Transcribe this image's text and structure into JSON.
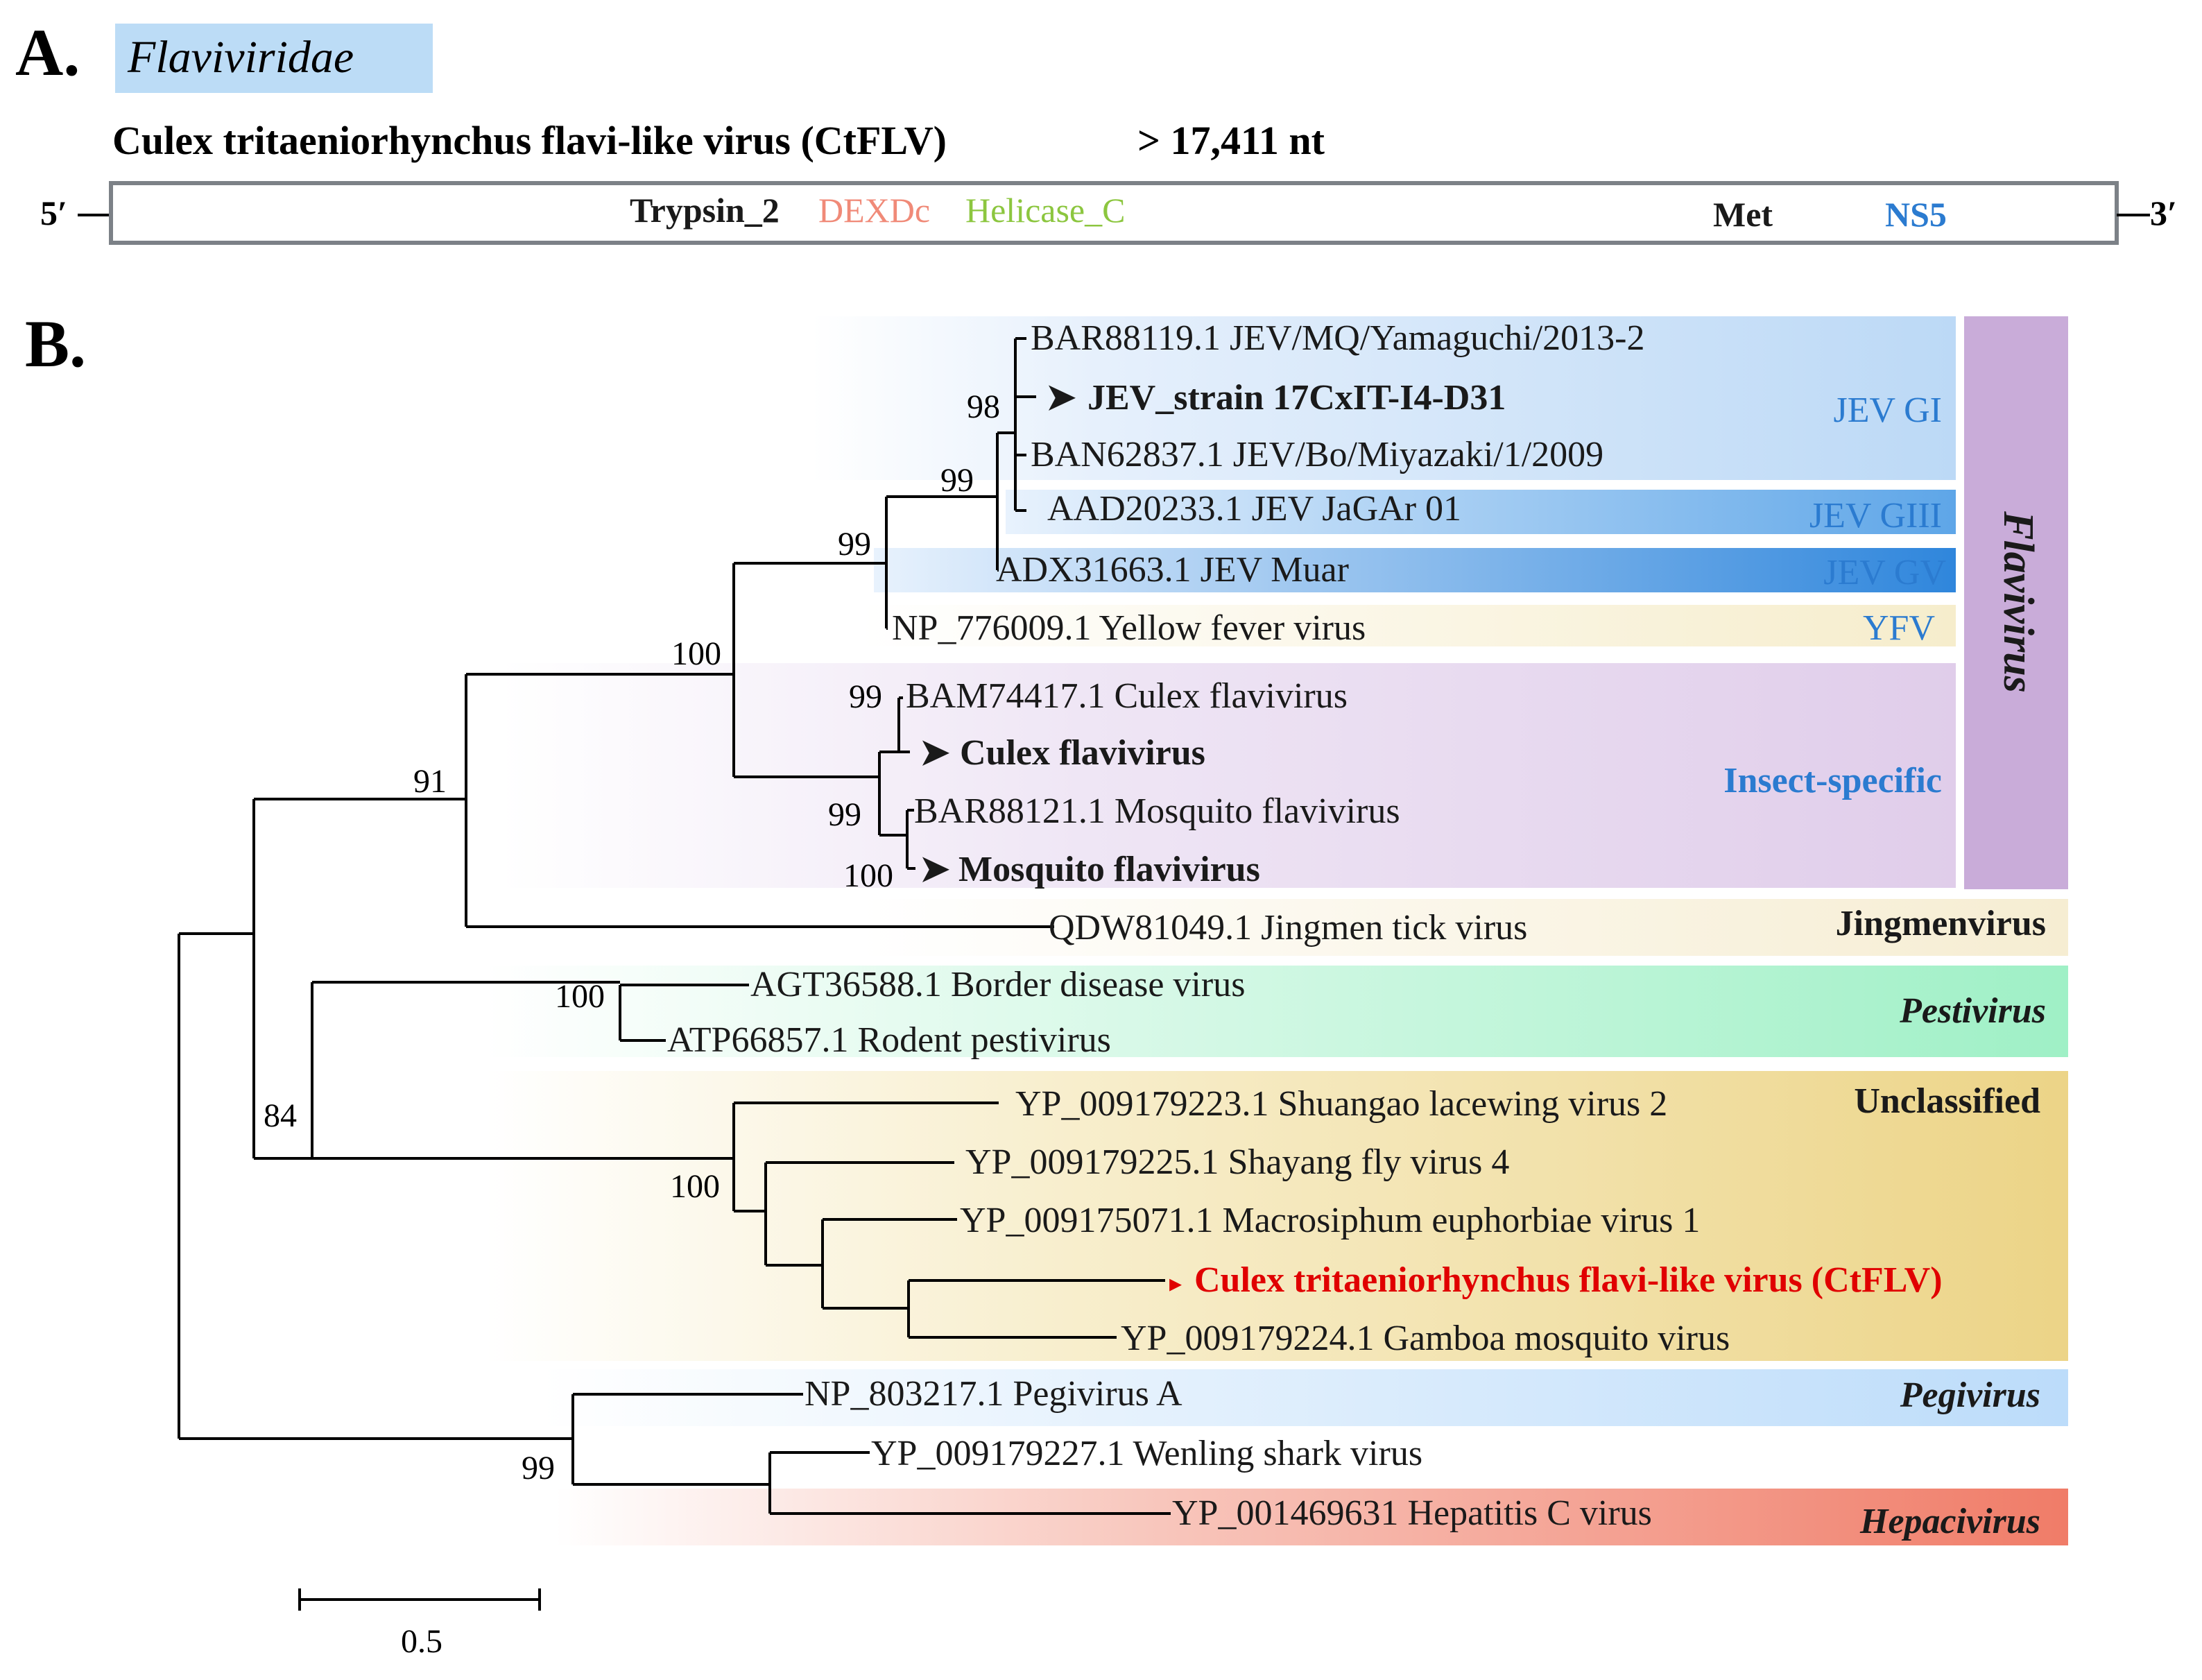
{
  "panel_a": {
    "letter": "A.",
    "family": "Flaviviridae",
    "genome_title": "Culex tritaeniorhynchus flavi-like virus (CtFLV)",
    "genome_length": "> 17,411 nt",
    "five_prime": "5′",
    "three_prime": "3′",
    "domains": [
      {
        "label": "Trypsin_2",
        "color": "#1a1a1a"
      },
      {
        "label": "DEXDc",
        "color": "#f08a78"
      },
      {
        "label": "Helicase_C",
        "color": "#8cc63f"
      },
      {
        "label": "Met",
        "color": "#1a1a1a"
      },
      {
        "label": "NS5",
        "color": "#2b7bd0"
      }
    ]
  },
  "panel_b": {
    "letter": "B.",
    "scale_bar_label": "0.5",
    "taxa": [
      {
        "label": "BAR88119.1 JEV/MQ/Yamaguchi/2013-2",
        "bold": false
      },
      {
        "label": "JEV_strain 17CxIT-I4-D31",
        "bold": true,
        "marker": "➤"
      },
      {
        "label": "BAN62837.1 JEV/Bo/Miyazaki/1/2009",
        "bold": false
      },
      {
        "label": "AAD20233.1 JEV JaGAr 01",
        "bold": false
      },
      {
        "label": "ADX31663.1 JEV Muar",
        "bold": false
      },
      {
        "label": "NP_776009.1 Yellow fever virus",
        "bold": false
      },
      {
        "label": "BAM74417.1 Culex flavivirus",
        "bold": false
      },
      {
        "label": "Culex flavivirus",
        "bold": true,
        "marker": "➤"
      },
      {
        "label": "BAR88121.1 Mosquito flavivirus",
        "bold": false
      },
      {
        "label": "Mosquito flavivirus",
        "bold": true,
        "marker": "➤"
      },
      {
        "label": "QDW81049.1 Jingmen tick virus",
        "bold": false
      },
      {
        "label": "AGT36588.1 Border disease virus",
        "bold": false
      },
      {
        "label": "ATP66857.1 Rodent pestivirus",
        "bold": false
      },
      {
        "label": "YP_009179223.1 Shuangao lacewing virus 2",
        "bold": false
      },
      {
        "label": "YP_009179225.1 Shayang fly virus 4",
        "bold": false
      },
      {
        "label": "YP_009175071.1 Macrosiphum euphorbiae virus 1",
        "bold": false
      },
      {
        "label": "Culex tritaeniorhynchus flavi-like virus (CtFLV)",
        "bold": true,
        "marker": "▸",
        "color": "#e00000"
      },
      {
        "label": "YP_009179224.1 Gamboa mosquito virus",
        "bold": false
      },
      {
        "label": "NP_803217.1 Pegivirus A",
        "bold": false
      },
      {
        "label": "YP_009179227.1 Wenling shark virus",
        "bold": false
      },
      {
        "label": "YP_001469631 Hepatitis C virus",
        "bold": false
      }
    ],
    "bootstrap": [
      "98",
      "99",
      "99",
      "100",
      "99",
      "99",
      "100",
      "91",
      "100",
      "84",
      "100",
      "99"
    ],
    "clades": [
      {
        "label": "JEV GI",
        "color": "#2b7bd0",
        "style": "normal"
      },
      {
        "label": "JEV GIII",
        "color": "#2b7bd0",
        "style": "normal"
      },
      {
        "label": "JEV GV",
        "color": "#2b7bd0",
        "style": "normal"
      },
      {
        "label": "YFV",
        "color": "#2b7bd0",
        "style": "normal"
      },
      {
        "label": "Insect-specific",
        "color": "#2b7bd0",
        "style": "bold"
      },
      {
        "label": "Jingmenvirus",
        "color": "#1a1a1a",
        "style": "bold"
      },
      {
        "label": "Pestivirus",
        "color": "#1a1a1a",
        "style": "bold-italic"
      },
      {
        "label": "Unclassified",
        "color": "#1a1a1a",
        "style": "bold"
      },
      {
        "label": "Pegivirus",
        "color": "#1a1a1a",
        "style": "bold-italic"
      },
      {
        "label": "Hepacivirus",
        "color": "#1a1a1a",
        "style": "bold-italic"
      }
    ],
    "genus_label": "Flavivirus"
  }
}
